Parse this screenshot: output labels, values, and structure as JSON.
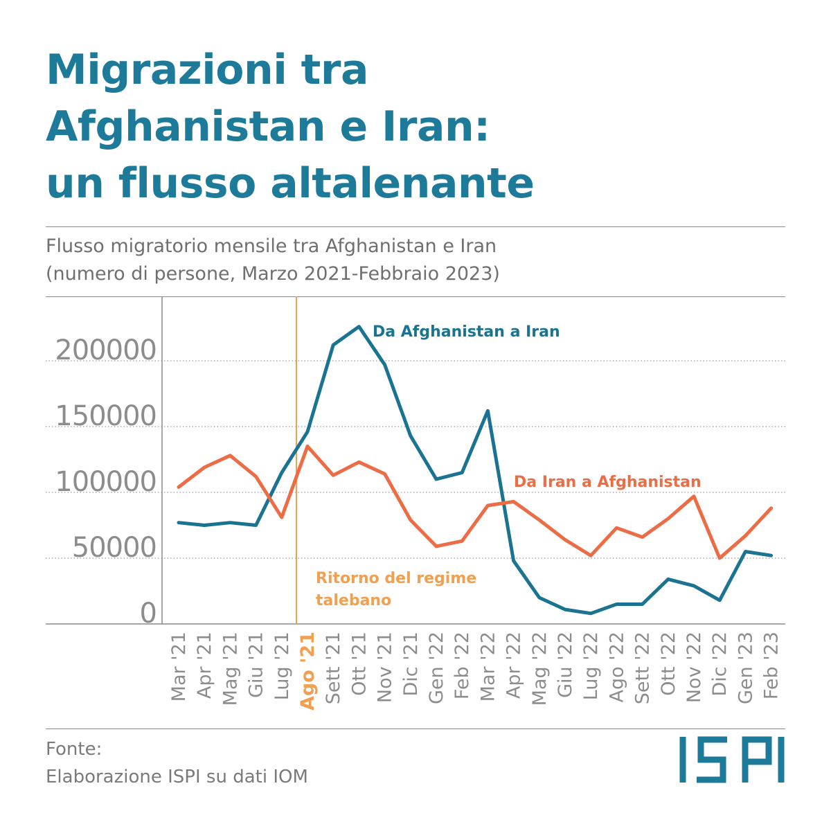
{
  "title": {
    "line1": "Migrazioni tra",
    "line2": "Afghanistan e Iran:",
    "line3": "un flusso altalenante"
  },
  "subtitle": {
    "line1": "Flusso migratorio mensile tra Afghanistan e Iran",
    "line2": "(numero di persone, Marzo 2021-Febbraio 2023)"
  },
  "source": {
    "line1": "Fonte:",
    "line2": "Elaborazione ISPI su dati IOM"
  },
  "logo_text": "ISPI",
  "colors": {
    "title": "#1e7a99",
    "afg_to_iran": "#1a7391",
    "iran_to_afg": "#ec6c45",
    "event": "#f0a050",
    "axis_text": "#8c8c8c",
    "grid": "#9a9a9a"
  },
  "chart_data": {
    "type": "line",
    "title": "Flusso migratorio mensile tra Afghanistan e Iran",
    "subtitle": "(numero di persone, Marzo 2021-Febbraio 2023)",
    "xlabel": "",
    "ylabel": "",
    "ylim": [
      0,
      220000
    ],
    "y_ticks": [
      0,
      50000,
      100000,
      150000,
      200000
    ],
    "y_tick_labels": [
      "0",
      "50000",
      "100000",
      "150000",
      "200000"
    ],
    "grid": "horizontal dotted",
    "categories": [
      "Mar '21",
      "Apr '21",
      "Mag '21",
      "Giu '21",
      "Lug '21",
      "Ago '21",
      "Sett '21",
      "Ott '21",
      "Nov '21",
      "Dic '21",
      "Gen '22",
      "Feb '22",
      "Mar '22",
      "Apr '22",
      "Mag '22",
      "Giu '22",
      "Lug '22",
      "Ago '22",
      "Sett '22",
      "Ott '22",
      "Nov '22",
      "Dic '22",
      "Gen '23",
      "Feb '23"
    ],
    "highlight_category": "Ago '21",
    "series": [
      {
        "name": "Da Afghanistan a Iran",
        "values": [
          77000,
          75000,
          77000,
          75000,
          115000,
          146000,
          212000,
          226000,
          197000,
          143000,
          110000,
          115000,
          162000,
          48000,
          20000,
          11000,
          8000,
          15000,
          15000,
          34000,
          29000,
          18000,
          55000,
          52000
        ]
      },
      {
        "name": "Da Iran a Afghanistan",
        "values": [
          104000,
          119000,
          128000,
          112000,
          81000,
          135000,
          113000,
          123000,
          114000,
          79000,
          59000,
          63000,
          90000,
          93000,
          79000,
          64000,
          52000,
          73000,
          66000,
          80000,
          97000,
          50000,
          67000,
          88000
        ]
      }
    ],
    "annotations": [
      {
        "text_line1": "Ritorno del regime",
        "text_line2": "talebano",
        "at_category": "Ago '21"
      }
    ]
  }
}
